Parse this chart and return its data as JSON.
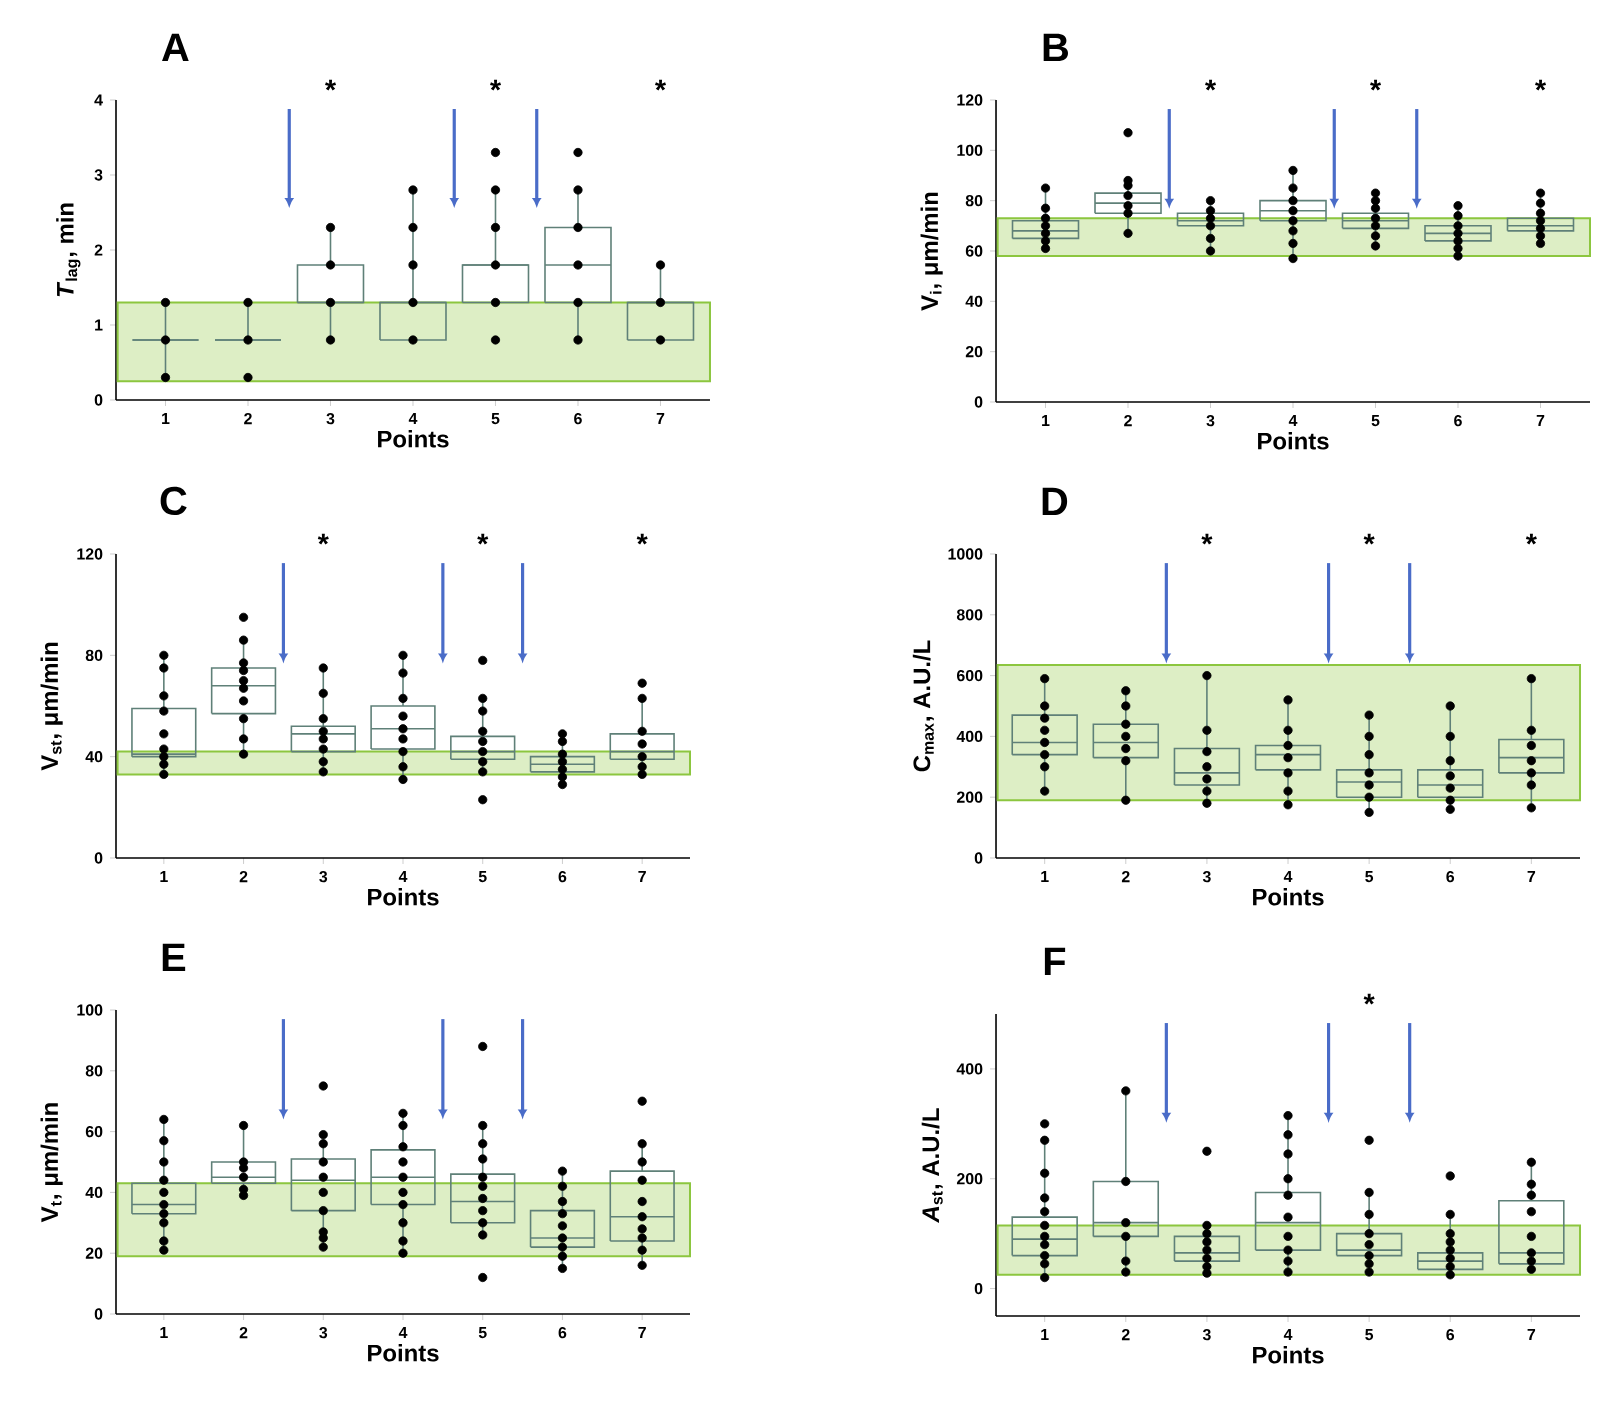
{
  "chart_data": [
    {
      "type": "box",
      "title": "A",
      "xlabel": "Points",
      "ylabel": "*T*$_{lag}$, min",
      "categories": [
        "1",
        "2",
        "3",
        "4",
        "5",
        "6",
        "7"
      ],
      "ylim": [
        0,
        4
      ],
      "yticks": [
        0,
        1,
        2,
        3,
        4
      ],
      "marker": "circle",
      "bands": [
        {
          "axis": "y",
          "from": 0.25,
          "to": 1.3,
          "color": "#8cc63f"
        }
      ],
      "annotations": [
        "*",
        "*",
        "*"
      ],
      "series": [
        {
          "color": "#5f8078",
          "boxes": [
            {
              "low": 0.3,
              "q1": 0.8,
              "median": 0.8,
              "q3": 0.8,
              "high": 1.3
            },
            {
              "low": 0.8,
              "q1": 0.8,
              "median": 0.8,
              "q3": 0.8,
              "high": 1.3
            },
            {
              "low": 0.8,
              "q1": 1.3,
              "median": 1.3,
              "q3": 1.8,
              "high": 2.3
            },
            {
              "low": 0.8,
              "q1": 0.8,
              "median": 1.3,
              "q3": 1.3,
              "high": 2.8
            },
            {
              "low": 1.3,
              "q1": 1.3,
              "median": 1.8,
              "q3": 1.8,
              "high": 2.8
            },
            {
              "low": 0.8,
              "q1": 1.3,
              "median": 1.8,
              "q3": 2.3,
              "high": 2.8
            },
            {
              "low": 0.8,
              "q1": 0.8,
              "median": 1.3,
              "q3": 1.3,
              "high": 1.8
            }
          ]
        },
        {
          "type": "scatter",
          "color": "#000000",
          "x": [
            "1",
            "1",
            "1",
            "2",
            "2",
            "2",
            "3",
            "3",
            "3",
            "3",
            "4",
            "4",
            "4",
            "4",
            "4",
            "5",
            "5",
            "5",
            "5",
            "5",
            "5",
            "6",
            "6",
            "6",
            "6",
            "6",
            "6",
            "7",
            "7",
            "7"
          ],
          "values": [
            0.3,
            0.8,
            1.3,
            0.3,
            0.8,
            1.3,
            0.8,
            1.3,
            1.8,
            2.3,
            0.8,
            1.3,
            1.8,
            2.3,
            2.8,
            0.8,
            1.3,
            1.8,
            2.3,
            2.8,
            3.3,
            0.8,
            1.3,
            1.8,
            2.3,
            2.8,
            3.3,
            0.8,
            1.3,
            1.8
          ]
        }
      ]
    },
    {
      "type": "box",
      "title": "B",
      "xlabel": "Points",
      "ylabel": "V$_{i}$, μm/min",
      "categories": [
        "1",
        "2",
        "3",
        "4",
        "5",
        "6",
        "7"
      ],
      "ylim": [
        0,
        120
      ],
      "yticks": [
        0,
        20,
        40,
        60,
        80,
        100,
        120
      ],
      "marker": "circle",
      "bands": [
        {
          "axis": "y",
          "from": 58,
          "to": 73,
          "color": "#8cc63f"
        }
      ],
      "annotations": [
        "*",
        "*",
        "*"
      ],
      "series": [
        {
          "color": "#5f8078",
          "boxes": [
            {
              "low": 61,
              "q1": 65,
              "median": 68,
              "q3": 72,
              "high": 85
            },
            {
              "low": 67,
              "q1": 75,
              "median": 79,
              "q3": 83,
              "high": 88
            },
            {
              "low": 60,
              "q1": 70,
              "median": 72,
              "q3": 75,
              "high": 80
            },
            {
              "low": 57,
              "q1": 72,
              "median": 76,
              "q3": 80,
              "high": 92
            },
            {
              "low": 62,
              "q1": 69,
              "median": 72,
              "q3": 75,
              "high": 83
            },
            {
              "low": 58,
              "q1": 64,
              "median": 67,
              "q3": 70,
              "high": 78
            },
            {
              "low": 63,
              "q1": 68,
              "median": 70,
              "q3": 73,
              "high": 83
            }
          ]
        },
        {
          "type": "scatter",
          "color": "#000000",
          "x": [
            "1",
            "1",
            "1",
            "1",
            "1",
            "1",
            "1",
            "2",
            "2",
            "2",
            "2",
            "2",
            "2",
            "2",
            "3",
            "3",
            "3",
            "3",
            "3",
            "3",
            "4",
            "4",
            "4",
            "4",
            "4",
            "4",
            "4",
            "4",
            "5",
            "5",
            "5",
            "5",
            "5",
            "5",
            "5",
            "6",
            "6",
            "6",
            "6",
            "6",
            "6",
            "6",
            "7",
            "7",
            "7",
            "7",
            "7",
            "7",
            "7"
          ],
          "values": [
            61,
            64,
            67,
            70,
            73,
            77,
            85,
            67,
            75,
            78,
            82,
            86,
            88,
            107,
            60,
            65,
            70,
            73,
            76,
            80,
            57,
            63,
            68,
            72,
            76,
            80,
            85,
            92,
            62,
            66,
            70,
            73,
            77,
            80,
            83,
            58,
            61,
            64,
            67,
            70,
            74,
            78,
            63,
            66,
            69,
            72,
            75,
            79,
            83
          ]
        }
      ]
    },
    {
      "type": "box",
      "title": "C",
      "xlabel": "Points",
      "ylabel": "V$_{st}$, μm/min",
      "categories": [
        "1",
        "2",
        "3",
        "4",
        "5",
        "6",
        "7"
      ],
      "ylim": [
        0,
        120
      ],
      "yticks": [
        0,
        40,
        80,
        120
      ],
      "marker": "circle",
      "bands": [
        {
          "axis": "y",
          "from": 33,
          "to": 42,
          "color": "#8cc63f"
        }
      ],
      "annotations": [
        "*",
        "*",
        "*"
      ],
      "series": [
        {
          "color": "#5f8078",
          "boxes": [
            {
              "low": 33,
              "q1": 40,
              "median": 41,
              "q3": 59,
              "high": 80
            },
            {
              "low": 41,
              "q1": 57,
              "median": 68,
              "q3": 75,
              "high": 86
            },
            {
              "low": 34,
              "q1": 42,
              "median": 49,
              "q3": 52,
              "high": 75
            },
            {
              "low": 32,
              "q1": 43,
              "median": 51,
              "q3": 60,
              "high": 80
            },
            {
              "low": 34,
              "q1": 39,
              "median": 42,
              "q3": 48,
              "high": 63
            },
            {
              "low": 29,
              "q1": 34,
              "median": 37,
              "q3": 40,
              "high": 46
            },
            {
              "low": 33,
              "q1": 39,
              "median": 42,
              "q3": 49,
              "high": 63
            }
          ]
        },
        {
          "type": "scatter",
          "color": "#000000",
          "x": [
            "1",
            "1",
            "1",
            "1",
            "1",
            "1",
            "1",
            "1",
            "1",
            "2",
            "2",
            "2",
            "2",
            "2",
            "2",
            "2",
            "2",
            "2",
            "2",
            "3",
            "3",
            "3",
            "3",
            "3",
            "3",
            "3",
            "3",
            "4",
            "4",
            "4",
            "4",
            "4",
            "4",
            "4",
            "4",
            "4",
            "5",
            "5",
            "5",
            "5",
            "5",
            "5",
            "5",
            "5",
            "5",
            "6",
            "6",
            "6",
            "6",
            "6",
            "6",
            "6",
            "7",
            "7",
            "7",
            "7",
            "7",
            "7",
            "7"
          ],
          "values": [
            33,
            37,
            40,
            43,
            49,
            58,
            64,
            75,
            80,
            41,
            47,
            55,
            62,
            67,
            70,
            74,
            77,
            86,
            95,
            34,
            38,
            43,
            47,
            50,
            55,
            65,
            75,
            31,
            36,
            42,
            47,
            51,
            56,
            63,
            73,
            80,
            23,
            34,
            38,
            42,
            46,
            50,
            58,
            63,
            78,
            29,
            32,
            35,
            38,
            41,
            46,
            49,
            33,
            36,
            40,
            45,
            50,
            63,
            69
          ]
        }
      ]
    },
    {
      "type": "box",
      "title": "D",
      "xlabel": "Points",
      "ylabel": "C$_{max}$, A.U./L",
      "categories": [
        "1",
        "2",
        "3",
        "4",
        "5",
        "6",
        "7"
      ],
      "ylim": [
        0,
        1000
      ],
      "yticks": [
        0,
        200,
        400,
        600,
        800,
        1000
      ],
      "marker": "circle",
      "bands": [
        {
          "axis": "y",
          "from": 190,
          "to": 635,
          "color": "#8cc63f"
        }
      ],
      "annotations": [
        "*",
        "*",
        "*"
      ],
      "series": [
        {
          "color": "#5f8078",
          "boxes": [
            {
              "low": 220,
              "q1": 340,
              "median": 380,
              "q3": 470,
              "high": 590
            },
            {
              "low": 190,
              "q1": 330,
              "median": 380,
              "q3": 440,
              "high": 550
            },
            {
              "low": 180,
              "q1": 240,
              "median": 280,
              "q3": 360,
              "high": 600
            },
            {
              "low": 175,
              "q1": 290,
              "median": 340,
              "q3": 370,
              "high": 520
            },
            {
              "low": 150,
              "q1": 200,
              "median": 250,
              "q3": 290,
              "high": 470
            },
            {
              "low": 160,
              "q1": 200,
              "median": 240,
              "q3": 290,
              "high": 500
            },
            {
              "low": 165,
              "q1": 280,
              "median": 330,
              "q3": 390,
              "high": 590
            }
          ]
        },
        {
          "type": "scatter",
          "color": "#000000",
          "x": [
            "1",
            "1",
            "1",
            "1",
            "1",
            "1",
            "1",
            "1",
            "2",
            "2",
            "2",
            "2",
            "2",
            "2",
            "2",
            "3",
            "3",
            "3",
            "3",
            "3",
            "3",
            "3",
            "4",
            "4",
            "4",
            "4",
            "4",
            "4",
            "4",
            "5",
            "5",
            "5",
            "5",
            "5",
            "5",
            "5",
            "6",
            "6",
            "6",
            "6",
            "6",
            "6",
            "6",
            "7",
            "7",
            "7",
            "7",
            "7",
            "7",
            "7"
          ],
          "values": [
            220,
            300,
            340,
            380,
            420,
            460,
            500,
            590,
            190,
            320,
            360,
            400,
            440,
            500,
            550,
            180,
            220,
            260,
            300,
            350,
            420,
            600,
            175,
            220,
            280,
            330,
            370,
            420,
            520,
            150,
            200,
            240,
            280,
            340,
            400,
            470,
            160,
            190,
            230,
            270,
            320,
            400,
            500,
            165,
            240,
            280,
            320,
            370,
            420,
            590
          ]
        }
      ]
    },
    {
      "type": "box",
      "title": "E",
      "xlabel": "Points",
      "ylabel": "V$_{t}$, μm/min",
      "categories": [
        "1",
        "2",
        "3",
        "4",
        "5",
        "6",
        "7"
      ],
      "ylim": [
        0,
        100
      ],
      "yticks": [
        0,
        20,
        40,
        60,
        80,
        100
      ],
      "marker": "circle",
      "bands": [
        {
          "axis": "y",
          "from": 19,
          "to": 43,
          "color": "#8cc63f"
        }
      ],
      "series": [
        {
          "color": "#5f8078",
          "boxes": [
            {
              "low": 21,
              "q1": 33,
              "median": 36,
              "q3": 43,
              "high": 64
            },
            {
              "low": 39,
              "q1": 43,
              "median": 45,
              "q3": 50,
              "high": 62
            },
            {
              "low": 22,
              "q1": 34,
              "median": 44,
              "q3": 51,
              "high": 59
            },
            {
              "low": 20,
              "q1": 36,
              "median": 45,
              "q3": 54,
              "high": 66
            },
            {
              "low": 26,
              "q1": 30,
              "median": 37,
              "q3": 46,
              "high": 63
            },
            {
              "low": 15,
              "q1": 22,
              "median": 25,
              "q3": 34,
              "high": 47
            },
            {
              "low": 16,
              "q1": 24,
              "median": 32,
              "q3": 47,
              "high": 56
            }
          ]
        },
        {
          "type": "scatter",
          "color": "#000000",
          "x": [
            "1",
            "1",
            "1",
            "1",
            "1",
            "1",
            "1",
            "1",
            "1",
            "1",
            "2",
            "2",
            "2",
            "2",
            "2",
            "2",
            "3",
            "3",
            "3",
            "3",
            "3",
            "3",
            "3",
            "3",
            "3",
            "3",
            "4",
            "4",
            "4",
            "4",
            "4",
            "4",
            "4",
            "4",
            "4",
            "4",
            "5",
            "5",
            "5",
            "5",
            "5",
            "5",
            "5",
            "5",
            "5",
            "5",
            "5",
            "6",
            "6",
            "6",
            "6",
            "6",
            "6",
            "6",
            "6",
            "6",
            "7",
            "7",
            "7",
            "7",
            "7",
            "7",
            "7",
            "7",
            "7",
            "7"
          ],
          "values": [
            21,
            24,
            30,
            33,
            36,
            40,
            44,
            50,
            57,
            64,
            39,
            41,
            45,
            48,
            50,
            62,
            22,
            25,
            27,
            34,
            40,
            45,
            50,
            56,
            59,
            75,
            20,
            24,
            30,
            36,
            40,
            45,
            50,
            55,
            62,
            66,
            12,
            26,
            30,
            34,
            38,
            42,
            45,
            51,
            56,
            62,
            88,
            15,
            19,
            22,
            25,
            29,
            33,
            37,
            42,
            47,
            16,
            21,
            25,
            28,
            32,
            37,
            44,
            50,
            56,
            70
          ]
        }
      ]
    },
    {
      "type": "box",
      "title": "F",
      "xlabel": "Points",
      "ylabel": "*A*$_{st}$, A.U./L",
      "categories": [
        "1",
        "2",
        "3",
        "4",
        "5",
        "6",
        "7"
      ],
      "ylim": [
        -50,
        500
      ],
      "yticks": [
        0,
        200,
        400
      ],
      "marker": "circle",
      "bands": [
        {
          "axis": "y",
          "from": 25,
          "to": 115,
          "color": "#8cc63f"
        }
      ],
      "annotations": [
        "*"
      ],
      "series": [
        {
          "color": "#5f8078",
          "boxes": [
            {
              "low": 20,
              "q1": 60,
              "median": 90,
              "q3": 130,
              "high": 270
            },
            {
              "low": 30,
              "q1": 95,
              "median": 120,
              "q3": 195,
              "high": 360
            },
            {
              "low": 30,
              "q1": 50,
              "median": 65,
              "q3": 95,
              "high": 115
            },
            {
              "low": 30,
              "q1": 70,
              "median": 120,
              "q3": 175,
              "high": 315
            },
            {
              "low": 30,
              "q1": 60,
              "median": 70,
              "q3": 100,
              "high": 175
            },
            {
              "low": 25,
              "q1": 35,
              "median": 50,
              "q3": 65,
              "high": 130
            },
            {
              "low": 35,
              "q1": 45,
              "median": 65,
              "q3": 160,
              "high": 230
            }
          ]
        },
        {
          "type": "scatter",
          "color": "#000000",
          "x": [
            "1",
            "1",
            "1",
            "1",
            "1",
            "1",
            "1",
            "1",
            "1",
            "1",
            "1",
            "2",
            "2",
            "2",
            "2",
            "2",
            "2",
            "3",
            "3",
            "3",
            "3",
            "3",
            "3",
            "3",
            "3",
            "4",
            "4",
            "4",
            "4",
            "4",
            "4",
            "4",
            "4",
            "4",
            "4",
            "5",
            "5",
            "5",
            "5",
            "5",
            "5",
            "5",
            "5",
            "6",
            "6",
            "6",
            "6",
            "6",
            "6",
            "6",
            "6",
            "7",
            "7",
            "7",
            "7",
            "7",
            "7",
            "7",
            "7"
          ],
          "values": [
            20,
            45,
            60,
            80,
            95,
            115,
            140,
            165,
            210,
            270,
            300,
            30,
            50,
            95,
            120,
            195,
            360,
            28,
            40,
            55,
            70,
            85,
            100,
            115,
            250,
            30,
            50,
            70,
            95,
            130,
            170,
            200,
            245,
            280,
            315,
            30,
            45,
            60,
            80,
            100,
            135,
            175,
            270,
            25,
            40,
            55,
            70,
            85,
            100,
            135,
            205,
            35,
            50,
            65,
            95,
            140,
            170,
            190,
            230
          ]
        }
      ]
    }
  ]
}
